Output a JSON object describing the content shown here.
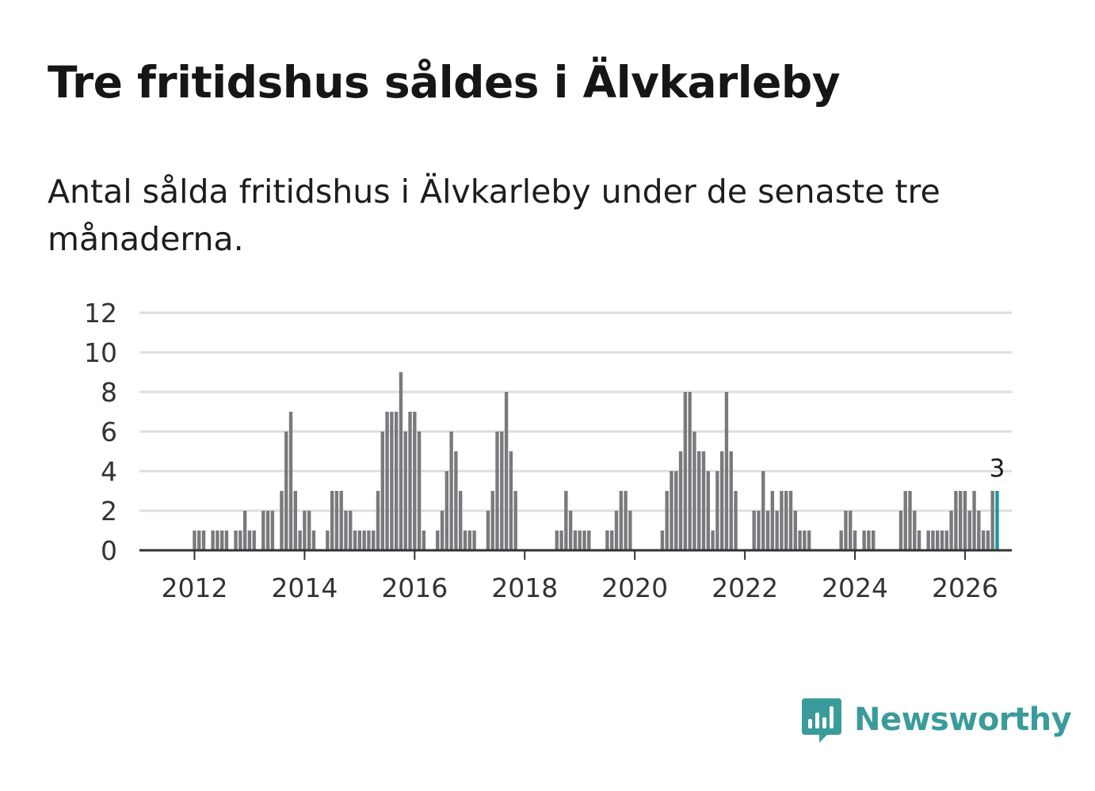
{
  "title": "Tre fritidshus såldes i Älvkarleby",
  "subtitle": "Antal sålda fritidshus i Älvkarleby under de senaste tre månaderna.",
  "brand": {
    "name": "Newsworthy",
    "icon": "newsworthy-logo-icon"
  },
  "colors": {
    "bar": "#7a797e",
    "highlight": "#17999a",
    "grid": "#dedede",
    "axis": "#333333",
    "brand": "#3a9c9a"
  },
  "chart_data": {
    "type": "bar",
    "title": "",
    "xlabel": "",
    "ylabel": "",
    "ylim": [
      0,
      12
    ],
    "y_ticks": [
      0,
      2,
      4,
      6,
      8,
      10,
      12
    ],
    "x_ticks": [
      "2012",
      "2014",
      "2016",
      "2018",
      "2020",
      "2022",
      "2024",
      "2026"
    ],
    "grid": true,
    "x_start": "2011-01",
    "highlight_label": "3",
    "values": [
      0,
      0,
      0,
      0,
      0,
      0,
      0,
      0,
      0,
      0,
      0,
      0,
      1,
      1,
      1,
      0,
      1,
      1,
      1,
      1,
      0,
      1,
      1,
      2,
      1,
      1,
      0,
      2,
      2,
      2,
      0,
      3,
      6,
      7,
      3,
      1,
      2,
      2,
      1,
      0,
      0,
      1,
      3,
      3,
      3,
      2,
      2,
      1,
      1,
      1,
      1,
      1,
      3,
      6,
      7,
      7,
      7,
      9,
      6,
      7,
      7,
      6,
      1,
      0,
      0,
      1,
      2,
      4,
      6,
      5,
      3,
      1,
      1,
      1,
      0,
      0,
      2,
      3,
      6,
      6,
      8,
      5,
      3,
      0,
      0,
      0,
      0,
      0,
      0,
      0,
      0,
      1,
      1,
      3,
      2,
      1,
      1,
      1,
      1,
      0,
      0,
      0,
      1,
      1,
      2,
      3,
      3,
      2,
      0,
      0,
      0,
      0,
      0,
      0,
      1,
      3,
      4,
      4,
      5,
      8,
      8,
      6,
      5,
      5,
      4,
      1,
      4,
      5,
      8,
      5,
      3,
      0,
      0,
      0,
      2,
      2,
      4,
      2,
      3,
      2,
      3,
      3,
      3,
      2,
      1,
      1,
      1,
      0,
      0,
      0,
      0,
      0,
      0,
      1,
      2,
      2,
      1,
      0,
      1,
      1,
      1,
      0,
      0,
      0,
      0,
      0,
      2,
      3,
      3,
      2,
      1,
      0,
      1,
      1,
      1,
      1,
      1,
      2,
      3,
      3,
      3,
      2,
      3,
      2,
      1,
      1,
      3,
      3
    ]
  }
}
